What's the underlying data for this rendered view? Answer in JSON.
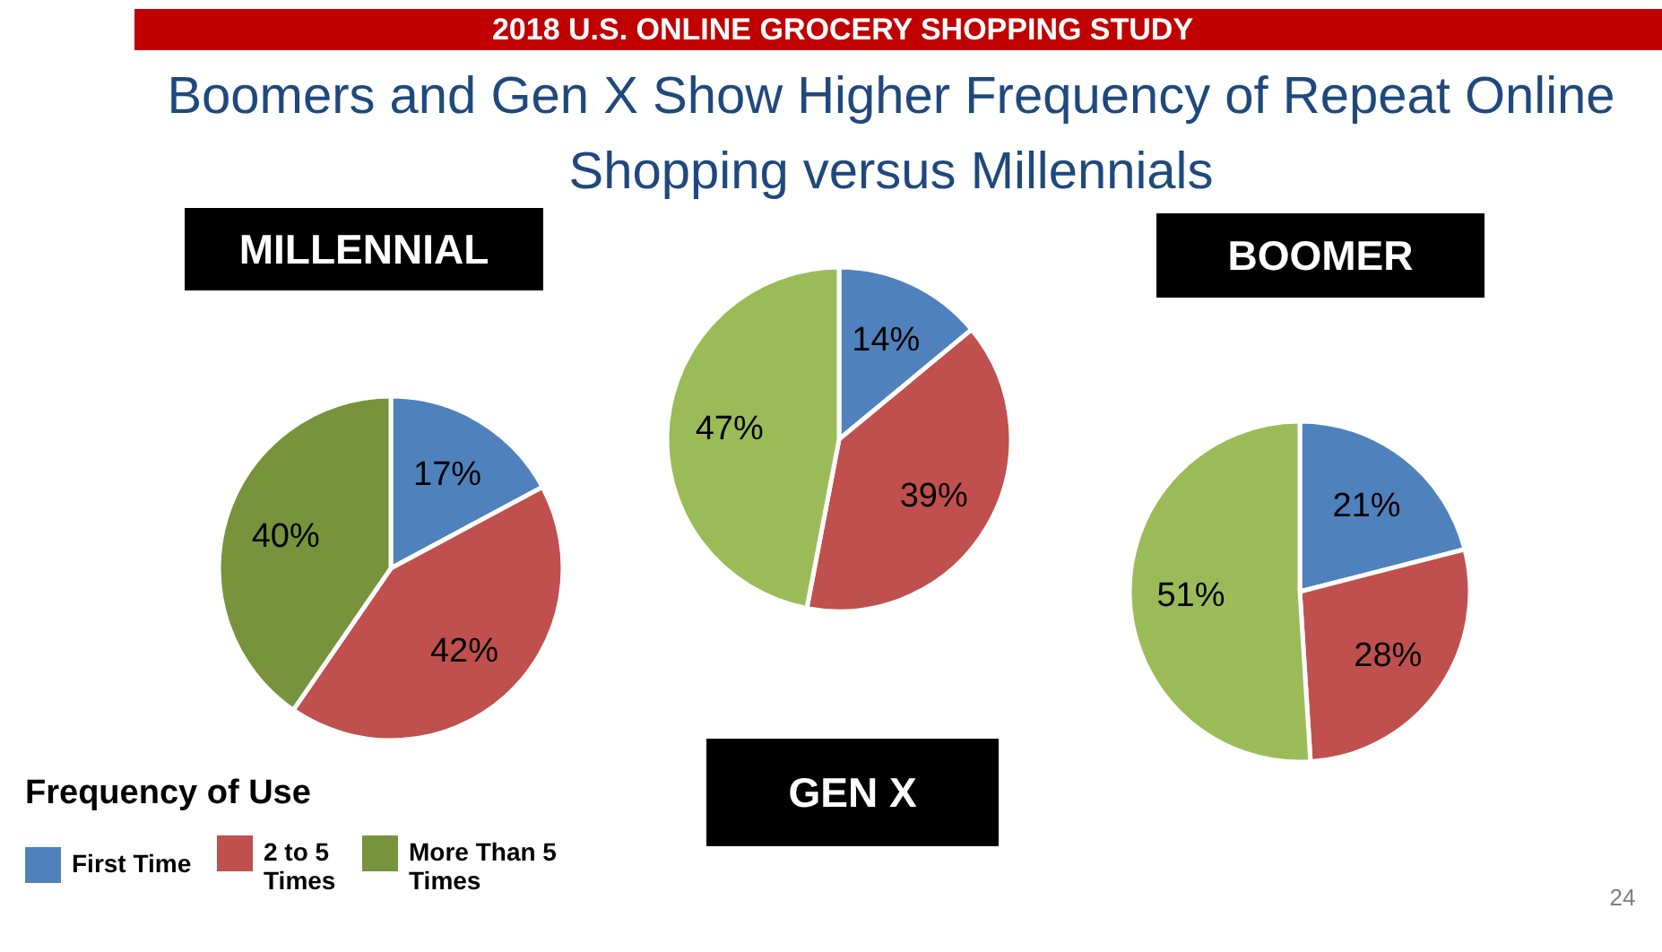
{
  "chart_data": [
    {
      "type": "other",
      "title": "2018 U.S. ONLINE GROCERY SHOPPING STUDY",
      "subtitle": "Boomers and Gen X Show Higher Frequency of Repeat Online Shopping versus Millennials"
    },
    {
      "type": "pie",
      "title": "MILLENNIAL",
      "categories": [
        "First Time",
        "2 to 5 Times",
        "More Than 5 Times"
      ],
      "values": [
        17,
        42,
        40
      ],
      "colors": [
        "#4f81bd",
        "#c0504d",
        "#77933c"
      ],
      "value_labels": [
        "17%",
        "42%",
        "40%"
      ],
      "legend": "bottom left",
      "legend_title": "Frequency of Use"
    },
    {
      "type": "pie",
      "title": "GEN X",
      "categories": [
        null,
        null,
        null
      ],
      "values": [
        14,
        39,
        47
      ],
      "colors": [
        "#4f81bd",
        "#c0504d",
        "#9bbb59"
      ],
      "value_labels": [
        "14%",
        "39%",
        "47%"
      ]
    },
    {
      "type": "pie",
      "title": "BOOMER",
      "categories": [
        null,
        null,
        null
      ],
      "values": [
        21,
        28,
        51
      ],
      "colors": [
        "#4f81bd",
        "#c0504d",
        "#9bbb59"
      ],
      "value_labels": [
        "21%",
        "28%",
        "51%"
      ],
      "annotations": [
        "24"
      ]
    }
  ]
}
